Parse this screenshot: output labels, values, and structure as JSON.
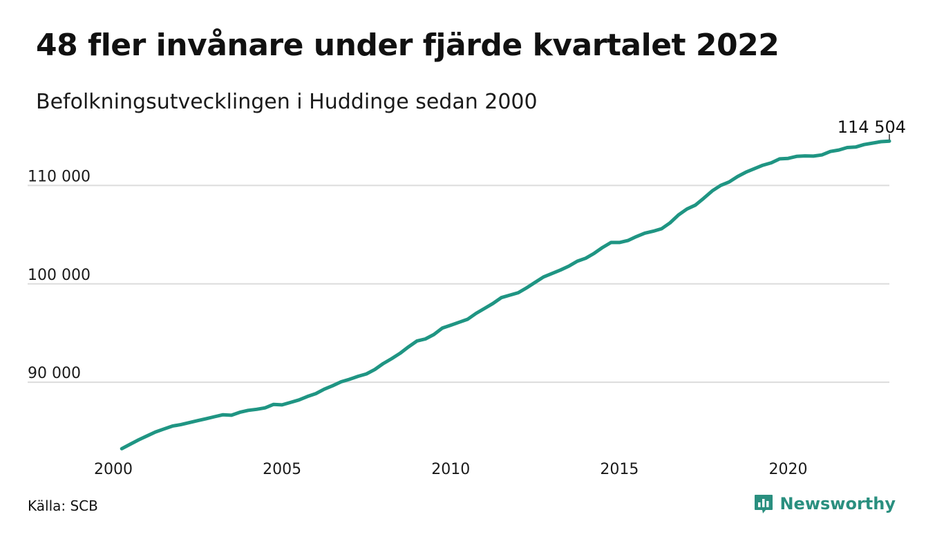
{
  "header": {
    "title": "48 fler invånare under fjärde kvartalet 2022",
    "subtitle": "Befolkningsutvecklingen i Huddinge sedan 2000"
  },
  "footer": {
    "source": "Källa: SCB",
    "brand": "Newsworthy",
    "brand_color": "#2a8f7f"
  },
  "chart_data": {
    "type": "line",
    "title": "48 fler invånare under fjärde kvartalet 2022",
    "subtitle": "Befolkningsutvecklingen i Huddinge sedan 2000",
    "line_color": "#1f9583",
    "grid": true,
    "xlim": [
      2000,
      2023
    ],
    "ylim": [
      82500,
      115500
    ],
    "x_ticks": [
      2000,
      2005,
      2010,
      2015,
      2020
    ],
    "x_tick_labels": [
      "2000",
      "2005",
      "2010",
      "2015",
      "2020"
    ],
    "y_ticks": [
      90000,
      100000,
      110000
    ],
    "y_tick_labels": [
      "90 000",
      "100 000",
      "110 000"
    ],
    "end_label": "114 504",
    "series": [
      {
        "x": [
          2000.25,
          2000.5,
          2000.75,
          2001.0,
          2001.25,
          2001.5,
          2001.75,
          2002.0,
          2002.25,
          2002.5,
          2002.75,
          2003.0,
          2003.25,
          2003.5,
          2003.75,
          2004.0,
          2004.25,
          2004.5,
          2004.75,
          2005.0,
          2005.25,
          2005.5,
          2005.75,
          2006.0,
          2006.25,
          2006.5,
          2006.75,
          2007.0,
          2007.25,
          2007.5,
          2007.75,
          2008.0,
          2008.25,
          2008.5,
          2008.75,
          2009.0,
          2009.25,
          2009.5,
          2009.75,
          2010.0,
          2010.25,
          2010.5,
          2010.75,
          2011.0,
          2011.25,
          2011.5,
          2011.75,
          2012.0,
          2012.25,
          2012.5,
          2012.75,
          2013.0,
          2013.25,
          2013.5,
          2013.75,
          2014.0,
          2014.25,
          2014.5,
          2014.75,
          2015.0,
          2015.25,
          2015.5,
          2015.75,
          2016.0,
          2016.25,
          2016.5,
          2016.75,
          2017.0,
          2017.25,
          2017.5,
          2017.75,
          2018.0,
          2018.25,
          2018.5,
          2018.75,
          2019.0,
          2019.25,
          2019.5,
          2019.75,
          2020.0,
          2020.25,
          2020.5,
          2020.75,
          2021.0,
          2021.25,
          2021.5,
          2021.75,
          2022.0,
          2022.25,
          2022.5,
          2022.75,
          2023.0
        ],
        "y": [
          83250,
          83700,
          84150,
          84550,
          84950,
          85250,
          85550,
          85700,
          85900,
          86100,
          86300,
          86500,
          86700,
          86650,
          86950,
          87150,
          87250,
          87400,
          87750,
          87700,
          87950,
          88200,
          88550,
          88850,
          89300,
          89650,
          90050,
          90300,
          90600,
          90850,
          91300,
          91900,
          92400,
          92950,
          93600,
          94200,
          94400,
          94850,
          95500,
          95800,
          96100,
          96400,
          97000,
          97500,
          98000,
          98600,
          98850,
          99100,
          99600,
          100150,
          100700,
          101050,
          101400,
          101800,
          102300,
          102600,
          103100,
          103700,
          104200,
          104200,
          104400,
          104800,
          105150,
          105350,
          105600,
          106200,
          107000,
          107600,
          108000,
          108700,
          109450,
          110000,
          110350,
          110900,
          111350,
          111700,
          112050,
          112300,
          112700,
          112750,
          112950,
          113000,
          112980,
          113100,
          113450,
          113600,
          113850,
          113900,
          114150,
          114300,
          114450,
          114504
        ]
      }
    ]
  }
}
